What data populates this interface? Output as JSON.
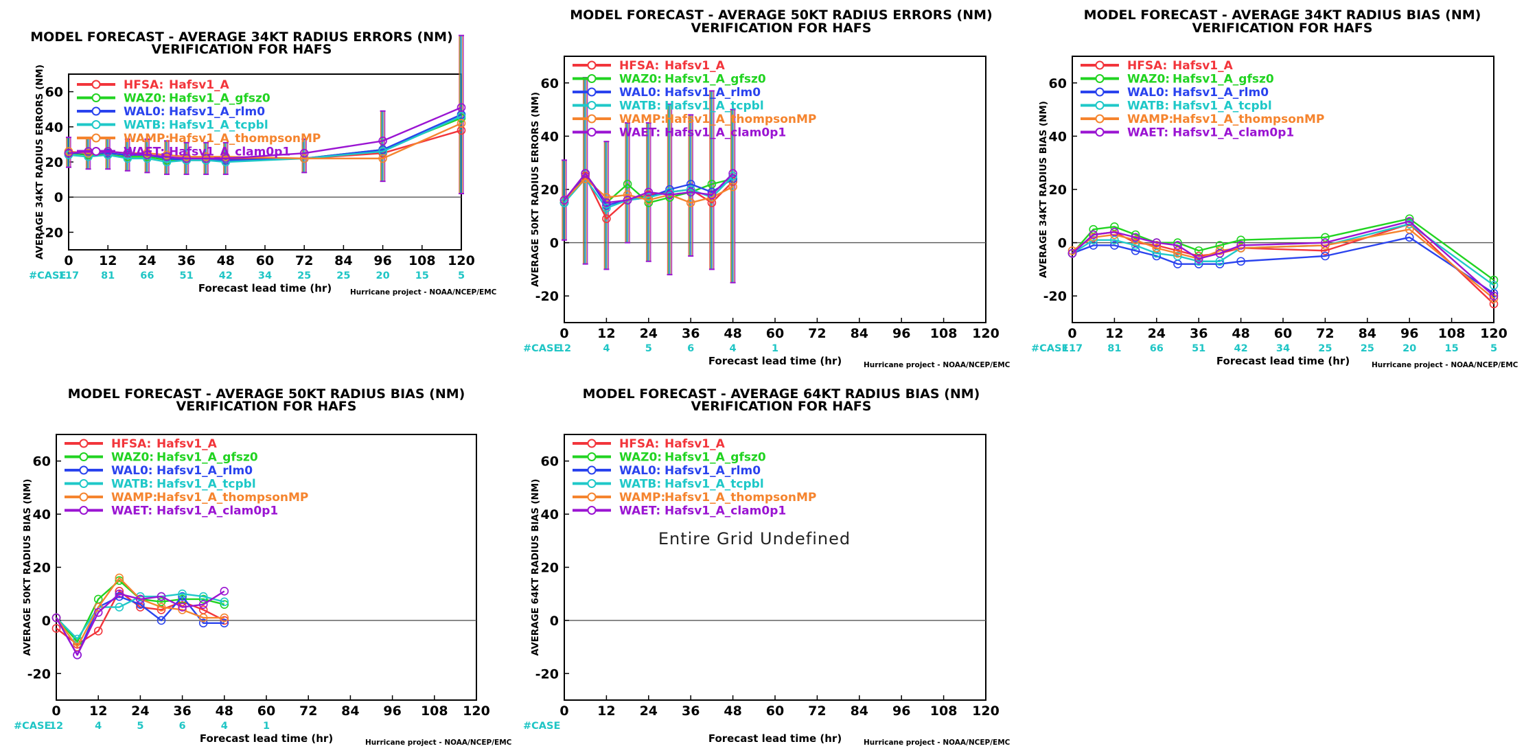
{
  "colors": {
    "HFSA": "#f2353b",
    "WAZ0": "#21d321",
    "WAL0": "#2a43ee",
    "WATB": "#1fc8c8",
    "WAMP": "#f5842e",
    "WAET": "#9a14d2",
    "case_label": "#1fc5c5"
  },
  "legend": [
    {
      "key": "HFSA",
      "code": "HFSA:",
      "name": "Hafsv1_A"
    },
    {
      "key": "WAZ0",
      "code": "WAZ0:",
      "name": "Hafsv1_A_gfsz0"
    },
    {
      "key": "WAL0",
      "code": "WAL0:",
      "name": "Hafsv1_A_rlm0"
    },
    {
      "key": "WATB",
      "code": "WATB:",
      "name": "Hafsv1_A_tcpbl"
    },
    {
      "key": "WAMP",
      "code": "WAMP:",
      "name": "Hafsv1_A_thompsonMP"
    },
    {
      "key": "WAET",
      "code": "WAET:",
      "name": "Hafsv1_A_clam0p1"
    }
  ],
  "chart_data": [
    {
      "id": "p1",
      "type": "line",
      "title": "MODEL FORECAST - AVERAGE 34KT RADIUS ERRORS (NM)",
      "subtitle": "VERIFICATION FOR HAFS",
      "ylabel": "AVERAGE 34KT RADIUS ERRORS (NM)",
      "xlabel": "Forecast lead time (hr)",
      "credit": "Hurricane project - NOAA/NCEP/EMC",
      "case_label": "#CASE",
      "xlim": [
        0,
        120
      ],
      "ylim": [
        -30,
        70
      ],
      "xticks": [
        0,
        12,
        24,
        36,
        48,
        60,
        72,
        84,
        96,
        108,
        120
      ],
      "yticks": [
        -20,
        0,
        20,
        40,
        60
      ],
      "case_x": [
        0,
        12,
        24,
        36,
        48,
        60,
        72,
        84,
        96,
        108,
        120
      ],
      "case_counts": [
        "117",
        "81",
        "66",
        "51",
        "42",
        "34",
        "25",
        "25",
        "20",
        "15",
        "5"
      ],
      "x": [
        0,
        6,
        12,
        18,
        24,
        30,
        36,
        42,
        48,
        72,
        96,
        120
      ],
      "series": [
        {
          "key": "HFSA",
          "values": [
            25,
            25,
            25,
            24,
            24,
            22,
            22,
            22,
            22,
            22,
            25,
            38
          ]
        },
        {
          "key": "WAZ0",
          "values": [
            25,
            24,
            24,
            23,
            23,
            21,
            21,
            21,
            21,
            22,
            27,
            45
          ]
        },
        {
          "key": "WAL0",
          "values": [
            25,
            25,
            25,
            24,
            24,
            22,
            21,
            21,
            21,
            22,
            27,
            47
          ]
        },
        {
          "key": "WATB",
          "values": [
            24,
            23,
            24,
            22,
            22,
            20,
            21,
            21,
            20,
            22,
            26,
            46
          ]
        },
        {
          "key": "WAMP",
          "values": [
            26,
            25,
            26,
            25,
            25,
            24,
            23,
            23,
            23,
            22,
            22,
            42
          ]
        },
        {
          "key": "WAET",
          "values": [
            25,
            26,
            26,
            25,
            24,
            23,
            22,
            22,
            22,
            25,
            32,
            51
          ]
        }
      ],
      "error_bars": [
        {
          "x": 0,
          "lo": 17,
          "hi": 34
        },
        {
          "x": 6,
          "lo": 16,
          "hi": 34
        },
        {
          "x": 12,
          "lo": 16,
          "hi": 34
        },
        {
          "x": 18,
          "lo": 15,
          "hi": 33
        },
        {
          "x": 24,
          "lo": 14,
          "hi": 33
        },
        {
          "x": 30,
          "lo": 13,
          "hi": 32
        },
        {
          "x": 36,
          "lo": 13,
          "hi": 31
        },
        {
          "x": 42,
          "lo": 13,
          "hi": 31
        },
        {
          "x": 48,
          "lo": 13,
          "hi": 31
        },
        {
          "x": 72,
          "lo": 14,
          "hi": 33
        },
        {
          "x": 96,
          "lo": 9,
          "hi": 49
        },
        {
          "x": 120,
          "lo": 2,
          "hi": 92
        }
      ],
      "undefined_text": ""
    },
    {
      "id": "p2",
      "type": "line",
      "title": "MODEL FORECAST - AVERAGE 50KT RADIUS ERRORS (NM)",
      "subtitle": "VERIFICATION FOR HAFS",
      "ylabel": "AVERAGE 50KT RADIUS ERRORS (NM)",
      "xlabel": "Forecast lead time (hr)",
      "credit": "Hurricane project - NOAA/NCEP/EMC",
      "case_label": "#CASE",
      "xlim": [
        0,
        120
      ],
      "ylim": [
        -30,
        70
      ],
      "xticks": [
        0,
        12,
        24,
        36,
        48,
        60,
        72,
        84,
        96,
        108,
        120
      ],
      "yticks": [
        -20,
        0,
        20,
        40,
        60
      ],
      "case_x": [
        0,
        12,
        24,
        36,
        48,
        60
      ],
      "case_counts": [
        "12",
        "4",
        "5",
        "6",
        "4",
        "1"
      ],
      "x": [
        0,
        6,
        12,
        18,
        24,
        30,
        36,
        42,
        48
      ],
      "series": [
        {
          "key": "HFSA",
          "values": [
            16,
            25,
            9,
            16,
            18,
            19,
            20,
            15,
            23
          ]
        },
        {
          "key": "WAZ0",
          "values": [
            15,
            26,
            15,
            22,
            15,
            17,
            19,
            22,
            24
          ]
        },
        {
          "key": "WAL0",
          "values": [
            15,
            26,
            14,
            16,
            17,
            20,
            22,
            19,
            24
          ]
        },
        {
          "key": "WATB",
          "values": [
            15,
            24,
            13,
            16,
            17,
            19,
            20,
            17,
            25
          ]
        },
        {
          "key": "WAMP",
          "values": [
            16,
            24,
            17,
            18,
            16,
            18,
            15,
            17,
            21
          ]
        },
        {
          "key": "WAET",
          "values": [
            16,
            26,
            15,
            16,
            19,
            18,
            19,
            18,
            26
          ]
        }
      ],
      "error_bars": [
        {
          "x": 0,
          "lo": 1,
          "hi": 31
        },
        {
          "x": 6,
          "lo": -8,
          "hi": 62
        },
        {
          "x": 12,
          "lo": -10,
          "hi": 38
        },
        {
          "x": 18,
          "lo": 0,
          "hi": 45
        },
        {
          "x": 24,
          "lo": -7,
          "hi": 45
        },
        {
          "x": 30,
          "lo": -12,
          "hi": 52
        },
        {
          "x": 36,
          "lo": -5,
          "hi": 48
        },
        {
          "x": 42,
          "lo": -10,
          "hi": 57
        },
        {
          "x": 48,
          "lo": -15,
          "hi": 50
        }
      ],
      "undefined_text": ""
    },
    {
      "id": "p3",
      "type": "line",
      "title": "MODEL FORECAST - AVERAGE 34KT RADIUS BIAS (NM)",
      "subtitle": "VERIFICATION FOR HAFS",
      "ylabel": "AVERAGE 34KT RADIUS BIAS (NM)",
      "xlabel": "Forecast lead time (hr)",
      "credit": "Hurricane project - NOAA/NCEP/EMC",
      "case_label": "#CASE",
      "xlim": [
        0,
        120
      ],
      "ylim": [
        -30,
        70
      ],
      "xticks": [
        0,
        12,
        24,
        36,
        48,
        60,
        72,
        84,
        96,
        108,
        120
      ],
      "yticks": [
        -20,
        0,
        20,
        40,
        60
      ],
      "case_x": [
        0,
        12,
        24,
        36,
        48,
        60,
        72,
        84,
        96,
        108,
        120
      ],
      "case_counts": [
        "117",
        "81",
        "66",
        "51",
        "42",
        "34",
        "25",
        "25",
        "20",
        "15",
        "5"
      ],
      "x": [
        0,
        6,
        12,
        18,
        24,
        30,
        36,
        42,
        48,
        72,
        96,
        120
      ],
      "series": [
        {
          "key": "HFSA",
          "values": [
            -4,
            3,
            4,
            0,
            -1,
            -3,
            -5,
            -4,
            -2,
            -3,
            7,
            -23
          ]
        },
        {
          "key": "WAZ0",
          "values": [
            -4,
            5,
            6,
            3,
            0,
            0,
            -3,
            -1,
            1,
            2,
            9,
            -14
          ]
        },
        {
          "key": "WAL0",
          "values": [
            -4,
            -1,
            -1,
            -3,
            -5,
            -8,
            -8,
            -8,
            -7,
            -5,
            2,
            -19
          ]
        },
        {
          "key": "WATB",
          "values": [
            -4,
            1,
            1,
            -1,
            -4,
            -5,
            -7,
            -7,
            -2,
            -1,
            7,
            -16
          ]
        },
        {
          "key": "WAMP",
          "values": [
            -3,
            2,
            3,
            1,
            -2,
            -4,
            -6,
            -3,
            -2,
            -1,
            5,
            -21
          ]
        },
        {
          "key": "WAET",
          "values": [
            -4,
            3,
            4,
            2,
            0,
            -1,
            -6,
            -4,
            -1,
            0,
            8,
            -20
          ]
        }
      ],
      "error_bars": [],
      "undefined_text": ""
    },
    {
      "id": "p4",
      "type": "line",
      "title": "MODEL FORECAST - AVERAGE 50KT RADIUS BIAS (NM)",
      "subtitle": "VERIFICATION FOR HAFS",
      "ylabel": "AVERAGE 50KT RADIUS BIAS (NM)",
      "xlabel": "Forecast lead time (hr)",
      "credit": "Hurricane project - NOAA/NCEP/EMC",
      "case_label": "#CASE",
      "xlim": [
        0,
        120
      ],
      "ylim": [
        -30,
        70
      ],
      "xticks": [
        0,
        12,
        24,
        36,
        48,
        60,
        72,
        84,
        96,
        108,
        120
      ],
      "yticks": [
        -20,
        0,
        20,
        40,
        60
      ],
      "case_x": [
        0,
        12,
        24,
        36,
        48,
        60
      ],
      "case_counts": [
        "12",
        "4",
        "5",
        "6",
        "4",
        "1"
      ],
      "x": [
        0,
        6,
        12,
        18,
        24,
        30,
        36,
        42,
        48
      ],
      "series": [
        {
          "key": "HFSA",
          "values": [
            -3,
            -9,
            -4,
            11,
            5,
            4,
            7,
            4,
            0
          ]
        },
        {
          "key": "WAZ0",
          "values": [
            1,
            -8,
            8,
            15,
            8,
            7,
            8,
            8,
            6
          ]
        },
        {
          "key": "WAL0",
          "values": [
            1,
            -13,
            5,
            9,
            6,
            0,
            9,
            -1,
            -1
          ]
        },
        {
          "key": "WATB",
          "values": [
            1,
            -7,
            5,
            5,
            9,
            9,
            10,
            9,
            7
          ]
        },
        {
          "key": "WAMP",
          "values": [
            1,
            -10,
            5,
            16,
            8,
            5,
            4,
            1,
            1
          ]
        },
        {
          "key": "WAET",
          "values": [
            1,
            -13,
            3,
            10,
            8,
            9,
            5,
            6,
            11
          ]
        }
      ],
      "error_bars": [],
      "undefined_text": ""
    },
    {
      "id": "p5",
      "type": "line",
      "title": "MODEL FORECAST - AVERAGE 64KT RADIUS BIAS (NM)",
      "subtitle": "VERIFICATION FOR HAFS",
      "ylabel": "AVERAGE 64KT RADIUS BIAS (NM)",
      "xlabel": "Forecast lead time (hr)",
      "credit": "Hurricane project - NOAA/NCEP/EMC",
      "case_label": "#CASE",
      "xlim": [
        0,
        120
      ],
      "ylim": [
        -30,
        70
      ],
      "xticks": [
        0,
        12,
        24,
        36,
        48,
        60,
        72,
        84,
        96,
        108,
        120
      ],
      "yticks": [
        -20,
        0,
        20,
        40,
        60
      ],
      "case_x": [],
      "case_counts": [],
      "x": [],
      "series": [],
      "error_bars": [],
      "undefined_text": "Entire Grid Undefined"
    }
  ]
}
